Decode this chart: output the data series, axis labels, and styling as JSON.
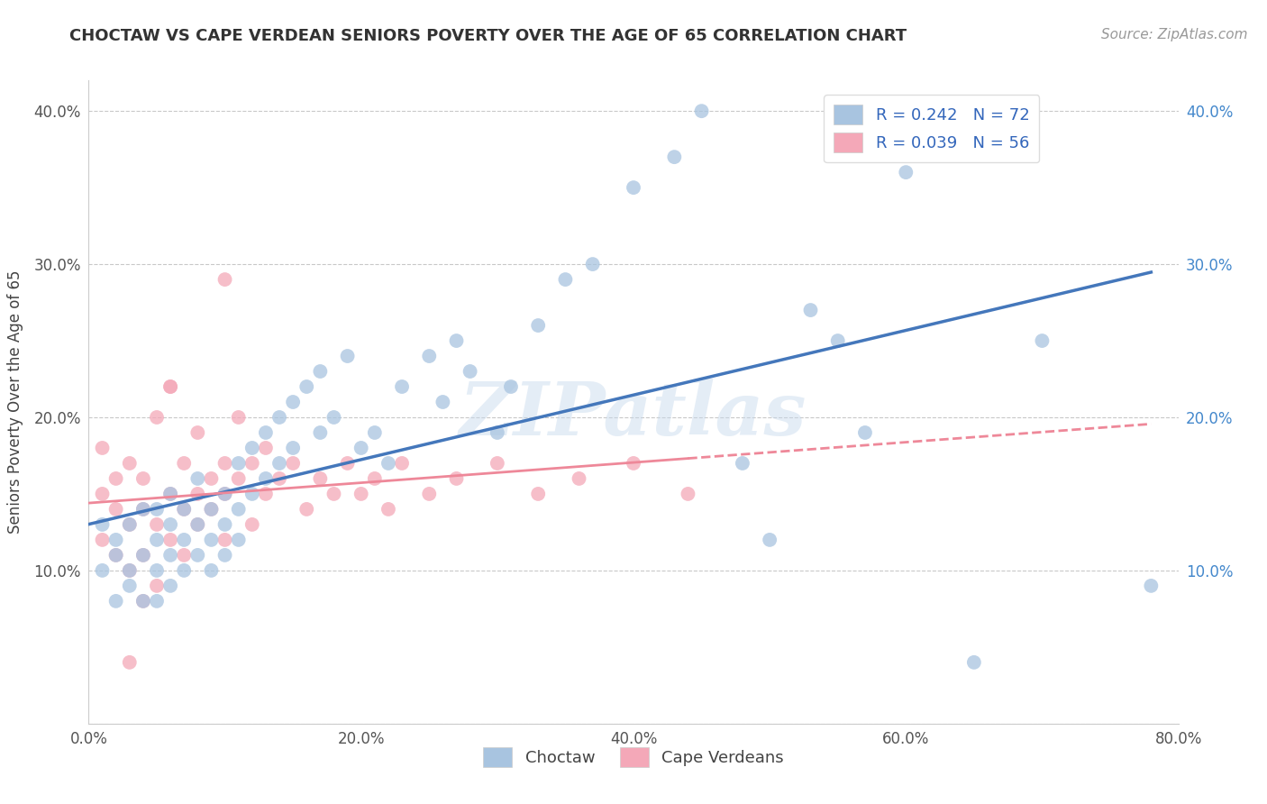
{
  "title": "CHOCTAW VS CAPE VERDEAN SENIORS POVERTY OVER THE AGE OF 65 CORRELATION CHART",
  "source_text": "Source: ZipAtlas.com",
  "ylabel": "Seniors Poverty Over the Age of 65",
  "choctaw_R": 0.242,
  "choctaw_N": 72,
  "capeverdean_R": 0.039,
  "capeverdean_N": 56,
  "choctaw_color": "#a8c4e0",
  "capeverdean_color": "#f4a8b8",
  "choctaw_line_color": "#4477bb",
  "capeverdean_line_color": "#ee8899",
  "background_color": "#ffffff",
  "watermark": "ZIPatlas",
  "xlim": [
    0.0,
    0.8
  ],
  "ylim": [
    0.0,
    0.42
  ],
  "xticks": [
    0.0,
    0.2,
    0.4,
    0.6,
    0.8
  ],
  "yticks": [
    0.0,
    0.1,
    0.2,
    0.3,
    0.4
  ],
  "xticklabels": [
    "0.0%",
    "20.0%",
    "40.0%",
    "60.0%",
    "80.0%"
  ],
  "yticklabels": [
    "",
    "10.0%",
    "20.0%",
    "30.0%",
    "40.0%"
  ],
  "choctaw_x": [
    0.01,
    0.01,
    0.02,
    0.02,
    0.02,
    0.03,
    0.03,
    0.03,
    0.04,
    0.04,
    0.04,
    0.05,
    0.05,
    0.05,
    0.05,
    0.06,
    0.06,
    0.06,
    0.06,
    0.07,
    0.07,
    0.07,
    0.08,
    0.08,
    0.08,
    0.09,
    0.09,
    0.09,
    0.1,
    0.1,
    0.1,
    0.11,
    0.11,
    0.11,
    0.12,
    0.12,
    0.13,
    0.13,
    0.14,
    0.14,
    0.15,
    0.15,
    0.16,
    0.17,
    0.17,
    0.18,
    0.19,
    0.2,
    0.21,
    0.22,
    0.23,
    0.25,
    0.26,
    0.27,
    0.28,
    0.3,
    0.31,
    0.33,
    0.35,
    0.37,
    0.4,
    0.43,
    0.45,
    0.48,
    0.5,
    0.53,
    0.55,
    0.57,
    0.6,
    0.65,
    0.7,
    0.78
  ],
  "choctaw_y": [
    0.13,
    0.1,
    0.12,
    0.08,
    0.11,
    0.09,
    0.13,
    0.1,
    0.14,
    0.11,
    0.08,
    0.12,
    0.1,
    0.14,
    0.08,
    0.13,
    0.11,
    0.09,
    0.15,
    0.12,
    0.1,
    0.14,
    0.13,
    0.11,
    0.16,
    0.14,
    0.12,
    0.1,
    0.15,
    0.13,
    0.11,
    0.17,
    0.14,
    0.12,
    0.18,
    0.15,
    0.19,
    0.16,
    0.2,
    0.17,
    0.21,
    0.18,
    0.22,
    0.19,
    0.23,
    0.2,
    0.24,
    0.18,
    0.19,
    0.17,
    0.22,
    0.24,
    0.21,
    0.25,
    0.23,
    0.19,
    0.22,
    0.26,
    0.29,
    0.3,
    0.35,
    0.37,
    0.4,
    0.17,
    0.12,
    0.27,
    0.25,
    0.19,
    0.36,
    0.04,
    0.25,
    0.09
  ],
  "capeverdean_x": [
    0.01,
    0.01,
    0.01,
    0.02,
    0.02,
    0.02,
    0.03,
    0.03,
    0.03,
    0.04,
    0.04,
    0.04,
    0.05,
    0.05,
    0.05,
    0.06,
    0.06,
    0.06,
    0.07,
    0.07,
    0.07,
    0.08,
    0.08,
    0.08,
    0.09,
    0.09,
    0.1,
    0.1,
    0.1,
    0.11,
    0.11,
    0.12,
    0.12,
    0.13,
    0.13,
    0.14,
    0.15,
    0.16,
    0.17,
    0.18,
    0.19,
    0.2,
    0.21,
    0.22,
    0.23,
    0.25,
    0.27,
    0.3,
    0.33,
    0.36,
    0.4,
    0.44,
    0.1,
    0.06,
    0.04,
    0.03
  ],
  "capeverdean_y": [
    0.15,
    0.12,
    0.18,
    0.14,
    0.11,
    0.16,
    0.13,
    0.1,
    0.17,
    0.14,
    0.11,
    0.16,
    0.13,
    0.2,
    0.09,
    0.22,
    0.12,
    0.15,
    0.14,
    0.11,
    0.17,
    0.15,
    0.13,
    0.19,
    0.16,
    0.14,
    0.15,
    0.12,
    0.17,
    0.2,
    0.16,
    0.17,
    0.13,
    0.18,
    0.15,
    0.16,
    0.17,
    0.14,
    0.16,
    0.15,
    0.17,
    0.15,
    0.16,
    0.14,
    0.17,
    0.15,
    0.16,
    0.17,
    0.15,
    0.16,
    0.17,
    0.15,
    0.29,
    0.22,
    0.08,
    0.04
  ]
}
